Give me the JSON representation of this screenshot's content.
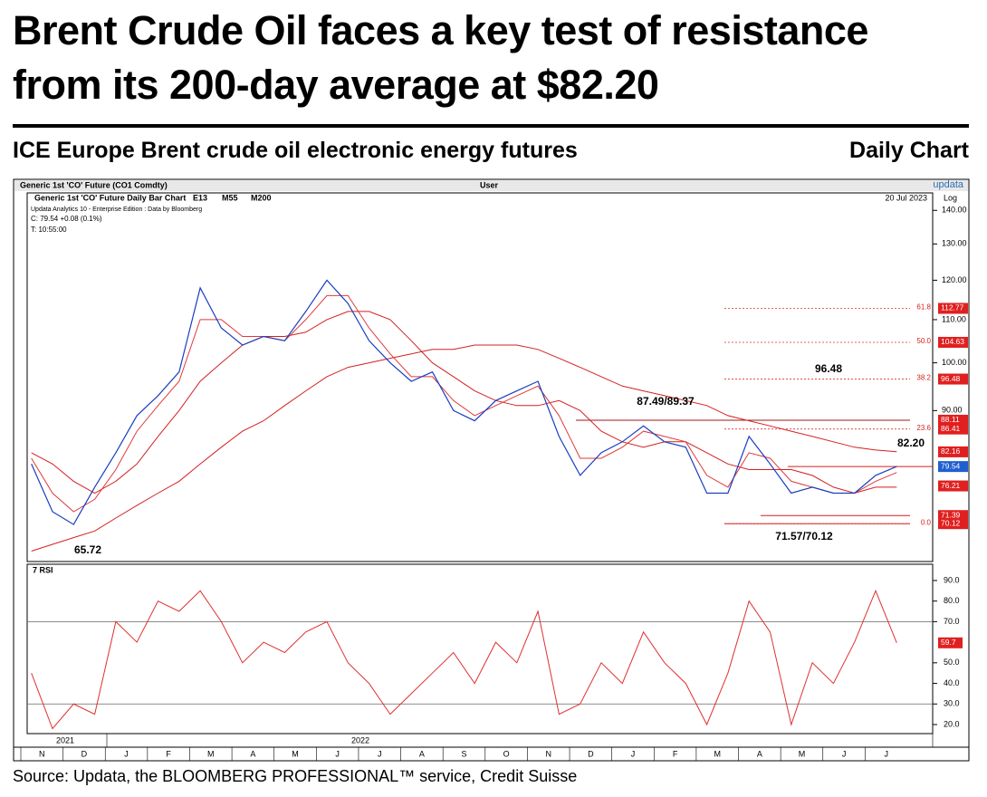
{
  "header": {
    "title_lines": [
      "Brent Crude Oil faces a key test of resistance",
      "from its 200-day average at $82.20"
    ],
    "subtitle": "ICE Europe Brent crude oil electronic energy futures",
    "chart_label": "Daily Chart",
    "source": "Source: Updata, the BLOOMBERG PROFESSIONAL™ service, Credit Suisse"
  },
  "chart_data": [
    {
      "type": "line",
      "log_scale": true,
      "info_bar": {
        "left": "Generic 1st 'CO' Future (CO1 Comdty)",
        "center": "User",
        "right": "updata"
      },
      "date": "20 Jul 2023",
      "scale_label": "Log",
      "notes": [
        "Updata Analytics 10 - Enterprise Edition : Data by Bloomberg",
        "C: 79.54 +0.08 (0.1%)",
        "T: 10:55:00"
      ],
      "categories": [
        "N",
        null,
        "D",
        null,
        "J",
        null,
        "F",
        null,
        "M",
        null,
        "A",
        null,
        "M",
        null,
        "J",
        null,
        "J",
        null,
        "A",
        null,
        "S",
        null,
        "O",
        null,
        "N",
        null,
        "D",
        null,
        "J",
        null,
        "F",
        null,
        "M",
        null,
        "A",
        null,
        "M",
        null,
        "J",
        null,
        "J",
        null
      ],
      "year_labels": [
        "2021",
        "2022"
      ],
      "series": [
        {
          "name": "Generic 1st 'CO' Future Daily Bar Chart",
          "color": "#1a3fbf",
          "values": [
            80,
            72,
            70,
            76,
            82,
            89,
            93,
            98,
            118,
            108,
            104,
            106,
            105,
            112,
            120,
            114,
            105,
            100,
            96,
            98,
            90,
            88,
            92,
            94,
            96,
            85,
            78,
            82,
            84,
            87,
            84,
            83,
            75,
            75,
            85,
            80,
            75,
            76,
            75,
            75,
            78,
            79.54
          ]
        },
        {
          "name": "E13",
          "color": "#e03a3a",
          "values": [
            81,
            75,
            72,
            74,
            79,
            86,
            91,
            96,
            110,
            110,
            106,
            106,
            105,
            110,
            116,
            116,
            108,
            102,
            97,
            97,
            92,
            89,
            91,
            93,
            95,
            89,
            81,
            81,
            83,
            86,
            85,
            84,
            78,
            76,
            82,
            81,
            77,
            76,
            75,
            75,
            77,
            78.5
          ]
        },
        {
          "name": "M55",
          "color": "#d42020",
          "values": [
            82,
            80,
            77,
            75,
            77,
            80,
            85,
            90,
            96,
            100,
            104,
            106,
            106,
            107,
            110,
            112,
            112,
            110,
            105,
            100,
            97,
            94,
            92,
            91,
            91,
            92,
            90,
            86,
            84,
            83,
            84,
            84,
            82,
            80,
            79,
            79,
            79,
            78,
            76,
            75,
            76,
            76
          ]
        },
        {
          "name": "M200",
          "color": "#d42020",
          "values": [
            66,
            67,
            68,
            69,
            71,
            73,
            75,
            77,
            80,
            83,
            86,
            88,
            91,
            94,
            97,
            99,
            100,
            101,
            102,
            103,
            103,
            104,
            104,
            104,
            103,
            101,
            99,
            97,
            95,
            94,
            93,
            92,
            91,
            89,
            88,
            87,
            86,
            85,
            84,
            83,
            82.5,
            82.2
          ]
        }
      ],
      "ylim": [
        64.5,
        145.5
      ],
      "yticks": [
        {
          "value": 140,
          "label": "140.00"
        },
        {
          "value": 130,
          "label": "130.00"
        },
        {
          "value": 120,
          "label": "120.00"
        },
        {
          "value": 110,
          "label": "110.00"
        },
        {
          "value": 100,
          "label": "100.00"
        },
        {
          "value": 90,
          "label": "90.00"
        }
      ],
      "price_labels": [
        {
          "value": 112.77,
          "color": "#e02020"
        },
        {
          "value": 104.63,
          "color": "#e02020"
        },
        {
          "value": 96.48,
          "color": "#e02020"
        },
        {
          "value": 88.11,
          "color": "#e02020"
        },
        {
          "value": 86.41,
          "color": "#e02020"
        },
        {
          "value": 82.16,
          "color": "#e02020"
        },
        {
          "value": 79.54,
          "color": "#1f5fd0"
        },
        {
          "value": 76.21,
          "color": "#e02020"
        },
        {
          "value": 71.39,
          "color": "#e02020"
        },
        {
          "value": 70.12,
          "color": "#e02020"
        }
      ],
      "fib_ratios": [
        "61.8",
        "50.0",
        "38.2",
        "23.6",
        "0.0"
      ],
      "annotations": [
        "87.49/89.37",
        "96.48",
        "82.20",
        "71.57/70.12",
        "65.72"
      ]
    },
    {
      "type": "line",
      "title": "7 RSI",
      "color": "#e03030",
      "values": [
        45,
        18,
        30,
        25,
        70,
        60,
        80,
        75,
        85,
        70,
        50,
        60,
        55,
        65,
        70,
        50,
        40,
        25,
        35,
        45,
        55,
        40,
        60,
        50,
        75,
        25,
        30,
        50,
        40,
        65,
        50,
        40,
        20,
        45,
        80,
        65,
        20,
        50,
        40,
        60,
        85,
        59.7
      ],
      "value_label": 59.7,
      "label_color": "#e02020",
      "ylim": [
        15.6,
        97.9
      ],
      "yticks": [
        {
          "value": 90,
          "label": "90.0"
        },
        {
          "value": 80,
          "label": "80.0"
        },
        {
          "value": 70,
          "label": "70.0"
        },
        {
          "value": 50,
          "label": "50.0"
        },
        {
          "value": 40,
          "label": "40.0"
        },
        {
          "value": 30,
          "label": "30.0"
        },
        {
          "value": 20,
          "label": "20.0"
        }
      ],
      "ref_lines": [
        70,
        30
      ]
    }
  ]
}
